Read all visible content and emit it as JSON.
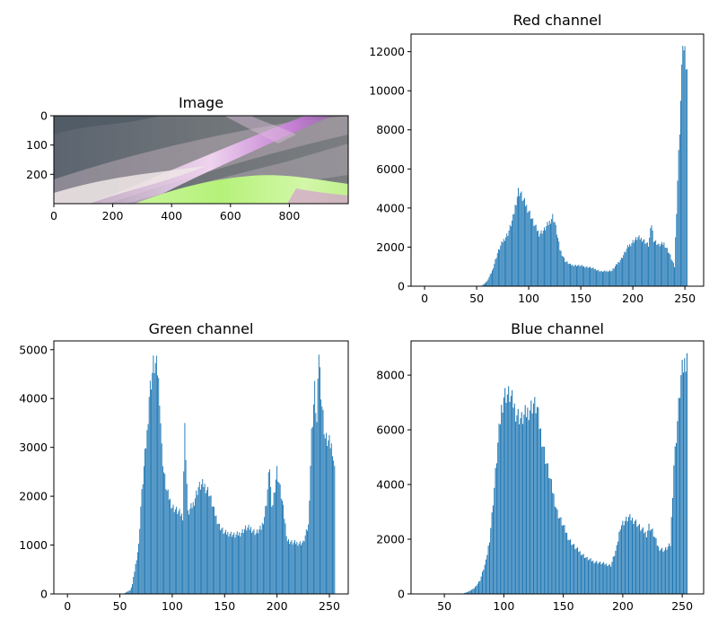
{
  "colors": {
    "bar": "#1f77b4",
    "axes": "#000000",
    "background": "#ffffff"
  },
  "image_panel": {
    "title": "Image",
    "image_size": [
      1000,
      300
    ],
    "xticks": [
      0,
      200,
      400,
      600,
      800
    ],
    "yticks": [
      0,
      100,
      200
    ]
  },
  "chart_data": [
    {
      "type": "bar",
      "title": "Red channel",
      "xlim": [
        -13,
        268
      ],
      "ylim": [
        0,
        12900
      ],
      "xticks": [
        0,
        50,
        100,
        150,
        200,
        250
      ],
      "yticks": [
        0,
        2000,
        4000,
        6000,
        8000,
        10000,
        12000
      ],
      "x_sample": [
        50,
        55,
        60,
        65,
        70,
        75,
        80,
        85,
        88,
        90,
        92,
        95,
        100,
        105,
        110,
        115,
        120,
        123,
        125,
        130,
        135,
        140,
        150,
        160,
        170,
        180,
        190,
        195,
        200,
        205,
        210,
        215,
        218,
        220,
        225,
        230,
        235,
        240,
        243,
        248,
        252
      ],
      "y_sample": [
        0,
        30,
        250,
        800,
        1700,
        2300,
        2700,
        3500,
        4400,
        4900,
        4800,
        4400,
        3900,
        3200,
        2700,
        2900,
        3300,
        3600,
        3300,
        1900,
        1300,
        1100,
        1050,
        950,
        750,
        800,
        1500,
        2000,
        2300,
        2500,
        2400,
        2100,
        3200,
        2400,
        2100,
        2200,
        1700,
        1000,
        5400,
        12300,
        11100
      ],
      "spikes": [
        {
          "x": 243,
          "y": 5400
        },
        {
          "x": 248,
          "y": 12300
        },
        {
          "x": 252,
          "y": 11100
        }
      ]
    },
    {
      "type": "bar",
      "title": "Green channel",
      "xlim": [
        -13,
        268
      ],
      "ylim": [
        0,
        5180
      ],
      "xticks": [
        0,
        50,
        100,
        150,
        200,
        250
      ],
      "yticks": [
        0,
        1000,
        2000,
        3000,
        4000,
        5000
      ],
      "x_sample": [
        55,
        60,
        62,
        65,
        68,
        70,
        73,
        76,
        78,
        80,
        82,
        84,
        86,
        88,
        90,
        92,
        95,
        100,
        105,
        110,
        112,
        115,
        120,
        125,
        130,
        135,
        140,
        145,
        150,
        155,
        160,
        165,
        170,
        175,
        180,
        185,
        188,
        190,
        193,
        195,
        200,
        205,
        210,
        215,
        220,
        225,
        230,
        233,
        236,
        238,
        240,
        243,
        246,
        250,
        253,
        255
      ],
      "y_sample": [
        20,
        80,
        200,
        600,
        1000,
        1800,
        2600,
        3300,
        4100,
        4400,
        4700,
        4700,
        4600,
        4100,
        3000,
        2500,
        2100,
        1800,
        1700,
        1600,
        3500,
        1650,
        1850,
        2200,
        2250,
        2100,
        1700,
        1400,
        1250,
        1250,
        1200,
        1250,
        1350,
        1350,
        1250,
        1350,
        1600,
        1900,
        2650,
        1700,
        2550,
        1900,
        1100,
        1050,
        1050,
        1050,
        1400,
        3300,
        4200,
        3500,
        4900,
        3900,
        3200,
        3100,
        3000,
        2550
      ],
      "spikes": [
        {
          "x": 112,
          "y": 3500
        },
        {
          "x": 240,
          "y": 4900
        }
      ]
    },
    {
      "type": "bar",
      "title": "Blue channel",
      "xlim": [
        22,
        268
      ],
      "ylim": [
        0,
        9250
      ],
      "xticks": [
        50,
        100,
        150,
        200,
        250
      ],
      "yticks": [
        0,
        2000,
        4000,
        6000,
        8000
      ],
      "x_sample": [
        66,
        70,
        75,
        80,
        85,
        88,
        90,
        92,
        95,
        98,
        100,
        102,
        105,
        108,
        110,
        115,
        120,
        125,
        128,
        130,
        135,
        140,
        145,
        150,
        155,
        160,
        165,
        170,
        175,
        180,
        185,
        190,
        195,
        198,
        200,
        205,
        210,
        215,
        220,
        222,
        225,
        230,
        235,
        240,
        243,
        249,
        254
      ],
      "y_sample": [
        20,
        80,
        200,
        500,
        1200,
        2000,
        2900,
        3900,
        5500,
        6800,
        7300,
        7350,
        7300,
        7000,
        6700,
        6400,
        6700,
        7000,
        6800,
        6200,
        5000,
        4000,
        3000,
        2500,
        2000,
        1700,
        1500,
        1300,
        1200,
        1150,
        1100,
        1050,
        1700,
        2500,
        2600,
        2800,
        2700,
        2400,
        2200,
        2500,
        2300,
        1700,
        1600,
        1800,
        4700,
        8000,
        8800
      ],
      "spikes": [
        {
          "x": 243,
          "y": 4700
        },
        {
          "x": 249,
          "y": 8000
        },
        {
          "x": 254,
          "y": 8800
        }
      ]
    }
  ]
}
